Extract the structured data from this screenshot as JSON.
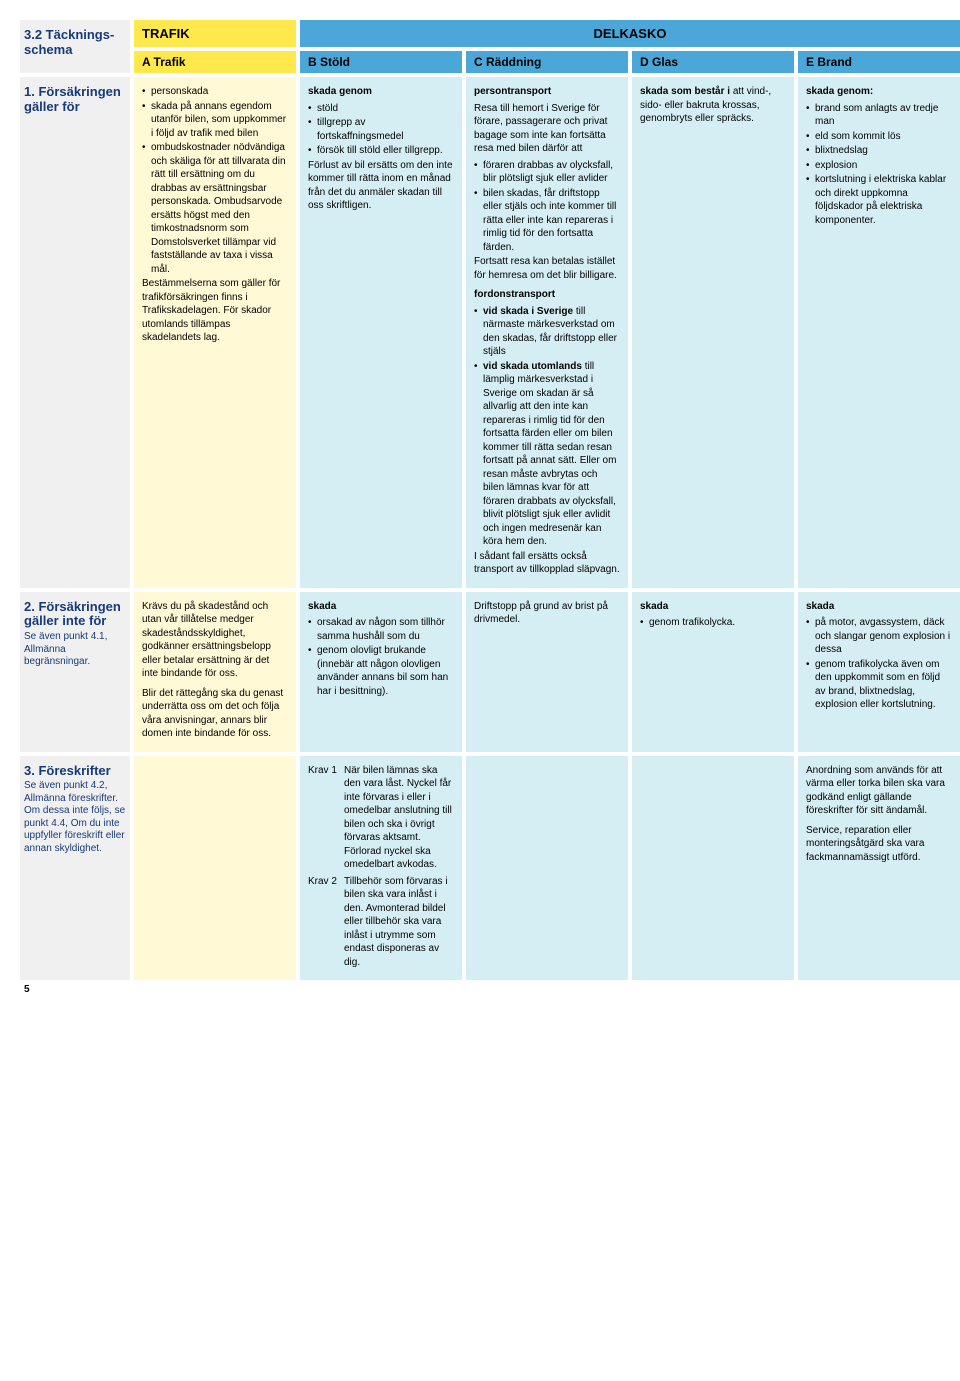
{
  "colors": {
    "yellow": "#ffe84c",
    "blue": "#4aa7d8",
    "gray_section": "#f0f0f0",
    "yellow_body": "#fff9d6",
    "blue_body": "#d5eef4",
    "title_blue": "#173a7a"
  },
  "header": {
    "section_title": "3.2 Täcknings-schema",
    "trafik": "TRAFIK",
    "delkasko": "DELKASKO",
    "A": "A Trafik",
    "B": "B Stöld",
    "C": "C Räddning",
    "D": "D Glas",
    "E": "E Brand"
  },
  "row1": {
    "label_title": "1. Försäkringen gäller för",
    "A": {
      "bullets": [
        "personskada",
        "skada på annans egendom utanför bilen, som uppkommer i följd av trafik med bilen",
        "ombudskostnader nödvändiga och skäliga för att tillvarata din rätt till ersättning om du drabbas av ersättningsbar personskada. Ombudsarvode ersätts högst med den timkostnadsnorm som Domstolsverket tillämpar vid fastställande av taxa i vissa mål."
      ],
      "tail": "Bestämmelserna som gäller för trafikförsäkringen finns i Trafikskadelagen. För skador utomlands tillämpas skadelandets lag."
    },
    "B": {
      "lead": "skada genom",
      "bullets": [
        "stöld",
        "tillgrepp av fortskaffningsmedel",
        "försök till stöld eller tillgrepp."
      ],
      "tail": "Förlust av bil ersätts om den inte kommer till rätta inom en månad från det du anmäler skadan till oss skriftligen."
    },
    "C": {
      "p1_lead": "persontransport",
      "p1_text": "Resa till hemort i Sverige för förare, passagerare och privat bagage som inte kan fortsätta resa med bilen därför att",
      "p1_bullets": [
        "föraren drabbas av olycksfall, blir plötsligt sjuk eller avlider",
        "bilen skadas, får driftstopp eller stjäls och inte kommer till rätta eller inte kan repareras i rimlig tid för den fortsatta färden."
      ],
      "p1_tail": "Fortsatt resa kan betalas istället för hemresa om det blir billigare.",
      "p2_lead": "fordonstransport",
      "p2_bullets": [
        "vid skada i Sverige till närmaste märkesverkstad om den skadas, får driftstopp eller stjäls",
        "vid skada utomlands till lämplig märkesverkstad i Sverige om skadan är så allvarlig att den inte kan repareras i rimlig tid för den fortsatta färden eller om bilen kommer till rätta sedan resan fortsatt på annat sätt. Eller om resan måste avbrytas och bilen lämnas kvar för att föraren drabbats av olycksfall, blivit plötsligt sjuk eller avlidit och ingen medresenär kan köra hem den."
      ],
      "p2_tail": "I sådant fall ersätts också transport av tillkopplad släpvagn."
    },
    "D": {
      "text": "skada som består i att vind-, sido- eller bakruta krossas, genombryts eller spräcks."
    },
    "E": {
      "lead": "skada genom:",
      "bullets": [
        "brand som anlagts av tredje man",
        "eld som kommit lös",
        "blixtnedslag",
        "explosion",
        "kortslutning i elektriska kablar och direkt uppkomna följdskador på elektriska komponenter."
      ]
    }
  },
  "row2": {
    "label_title": "2. Försäkringen gäller inte för",
    "label_sub": "Se även punkt 4.1, Allmänna begränsningar.",
    "A": {
      "p1": "Krävs du på skadestånd och utan vår tillåtelse medger skadeståndsskyldighet, godkänner ersättningsbelopp eller betalar ersättning är det inte bindande för oss.",
      "p2": "Blir det rättegång ska du genast underrätta oss om det och följa våra anvisningar, annars blir domen inte bindande för oss."
    },
    "B": {
      "lead": "skada",
      "bullets": [
        "orsakad av någon som tillhör samma hushåll som du",
        "genom olovligt brukande (innebär att någon olovligen använder annans bil som han har i besittning)."
      ]
    },
    "C": {
      "text": "Driftstopp på grund av brist på drivmedel."
    },
    "D": {
      "lead": "skada",
      "bullets": [
        "genom trafikolycka."
      ]
    },
    "E": {
      "lead": "skada",
      "bullets": [
        "på motor, avgassystem, däck och slangar genom explosion i dessa",
        "genom trafikolycka även om den uppkommit som en följd av brand, blixtnedslag, explosion eller kortslutning."
      ]
    }
  },
  "row3": {
    "label_title": "3. Föreskrifter",
    "label_sub": "Se även punkt 4.2, Allmänna föreskrifter.\nOm dessa inte följs, se punkt 4.4, Om du inte uppfyller föreskrift eller annan skyldighet.",
    "B": {
      "k1_label": "Krav 1",
      "k1_text": "När bilen lämnas ska den vara låst. Nyckel får inte förvaras i eller i omedelbar anslutning till bilen och ska i övrigt förvaras aktsamt. Förlorad nyckel ska omedelbart avkodas.",
      "k2_label": "Krav 2",
      "k2_text": "Tillbehör som förvaras i bilen ska vara inlåst i den. Avmonterad bildel eller tillbehör ska vara inlåst i utrymme som endast disponeras av dig."
    },
    "E": {
      "p1": "Anordning som används för att värma eller torka bilen ska vara godkänd enligt gällande föreskrifter för sitt ändamål.",
      "p2": "Service, reparation eller monteringsåtgärd ska vara fackmannamässigt utförd."
    }
  },
  "page_number": "5"
}
